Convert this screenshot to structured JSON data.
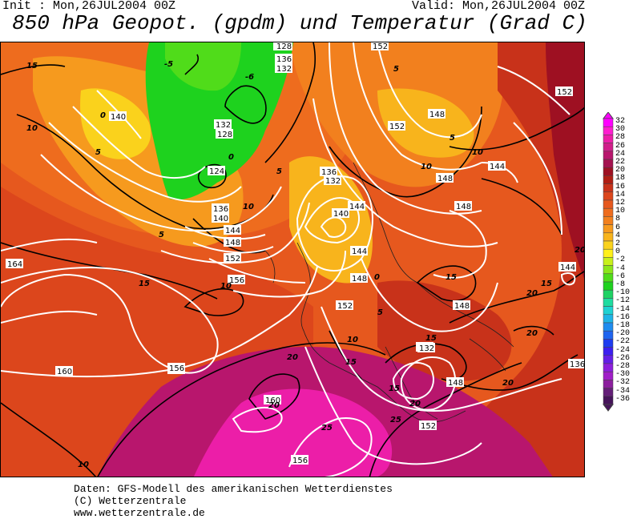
{
  "header": {
    "init": "Init : Mon,26JUL2004 00Z",
    "valid": "Valid: Mon,26JUL2004 00Z",
    "title": "850 hPa Geopot. (gpdm) und Temperatur (Grad C)"
  },
  "legend": {
    "labels": [
      "32",
      "30",
      "28",
      "26",
      "24",
      "22",
      "20",
      "18",
      "16",
      "14",
      "12",
      "10",
      "8",
      "6",
      "4",
      "2",
      "0",
      "-2",
      "-4",
      "-6",
      "-8",
      "-10",
      "-12",
      "-14",
      "-16",
      "-18",
      "-20",
      "-22",
      "-24",
      "-26",
      "-28",
      "-30",
      "-32",
      "-34",
      "-36"
    ],
    "colors": [
      "#ff00ff",
      "#ff1ecf",
      "#ec1ea8",
      "#d01e8a",
      "#b8166d",
      "#a4124f",
      "#9e1022",
      "#b01e14",
      "#c8321a",
      "#dc461c",
      "#e6581e",
      "#ee6c1e",
      "#f2801e",
      "#f69a1e",
      "#f8b41c",
      "#fad21c",
      "#fff01a",
      "#c8f01a",
      "#8ce61a",
      "#50dc1a",
      "#1ed21e",
      "#1ed264",
      "#1edca0",
      "#1ed2d2",
      "#1eb4e6",
      "#1e8cf0",
      "#1e64f0",
      "#1e3cf0",
      "#3c1ef0",
      "#641ee6",
      "#8c1edc",
      "#a01ec8",
      "#8c1e9e",
      "#641e78",
      "#46145a"
    ]
  },
  "map": {
    "geopotential_labels": [
      "164",
      "160",
      "156",
      "152",
      "148",
      "144",
      "140",
      "136",
      "132",
      "128",
      "124",
      "156",
      "152",
      "148",
      "144",
      "140",
      "136",
      "132",
      "128",
      "152",
      "148",
      "144",
      "140",
      "136",
      "132",
      "128",
      "144",
      "148",
      "152",
      "152",
      "156",
      "160",
      "148",
      "148",
      "144",
      "144",
      "152",
      "156",
      "160",
      "148",
      "144",
      "140",
      "136",
      "132",
      "148",
      "152",
      "140"
    ],
    "temperature_labels": [
      "15",
      "10",
      "5",
      "0",
      "-5",
      "-6",
      "10",
      "5",
      "0",
      "5",
      "10",
      "15",
      "20",
      "15",
      "10",
      "5",
      "20",
      "15",
      "20",
      "25",
      "20",
      "25",
      "15",
      "20",
      "15",
      "10",
      "15",
      "20",
      "20",
      "10",
      "5",
      "0",
      "5",
      "10"
    ]
  },
  "footer": {
    "line1": "Daten: GFS-Modell des amerikanischen Wetterdienstes",
    "line2": "(C) Wetterzentrale",
    "line3": "www.wetterzentrale.de"
  }
}
